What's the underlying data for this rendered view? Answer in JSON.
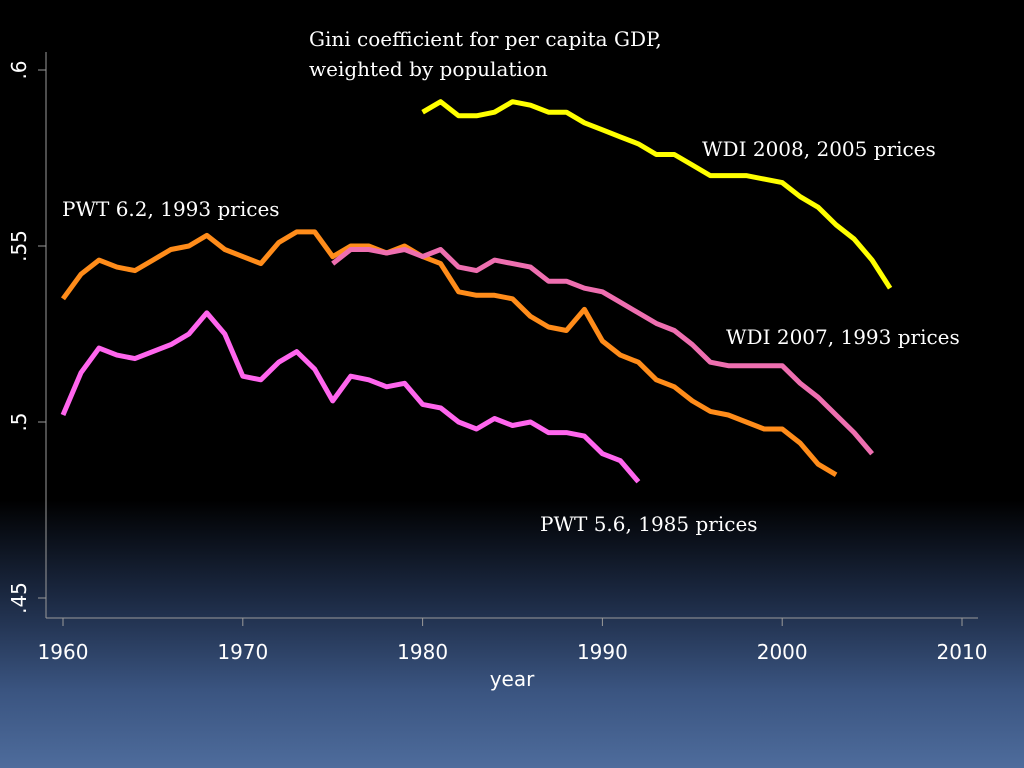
{
  "chart_data": {
    "type": "line",
    "xlabel": "year",
    "ylabel": "",
    "xlim": [
      1960,
      2010
    ],
    "ylim": [
      0.45,
      0.6
    ],
    "xticks": [
      {
        "value": 1960,
        "label": "1960"
      },
      {
        "value": 1970,
        "label": "1970"
      },
      {
        "value": 1980,
        "label": "1980"
      },
      {
        "value": 1990,
        "label": "1990"
      },
      {
        "value": 2000,
        "label": "2000"
      },
      {
        "value": 2010,
        "label": "2010"
      }
    ],
    "yticks": [
      {
        "value": 0.45,
        "label": ".45"
      },
      {
        "value": 0.5,
        "label": ".5"
      },
      {
        "value": 0.55,
        "label": ".55"
      },
      {
        "value": 0.6,
        "label": ".6"
      }
    ],
    "grid": false,
    "title_lines": [
      "Gini coefficient for per capita GDP,",
      "weighted by population"
    ],
    "series": [
      {
        "name": "WDI 2008, 2005 prices",
        "color": "#ffff00",
        "x": [
          1980,
          1981,
          1982,
          1983,
          1984,
          1985,
          1986,
          1987,
          1988,
          1989,
          1990,
          1991,
          1992,
          1993,
          1994,
          1995,
          1996,
          1997,
          1998,
          1999,
          2000,
          2001,
          2002,
          2003,
          2004,
          2005,
          2006
        ],
        "y": [
          0.588,
          0.591,
          0.587,
          0.587,
          0.588,
          0.591,
          0.59,
          0.588,
          0.588,
          0.585,
          0.583,
          0.581,
          0.579,
          0.576,
          0.576,
          0.573,
          0.57,
          0.57,
          0.57,
          0.569,
          0.568,
          0.564,
          0.561,
          0.556,
          0.552,
          0.546,
          0.538
        ]
      },
      {
        "name": "PWT 6.2, 1993 prices",
        "color": "#ff8c1a",
        "x": [
          1960,
          1961,
          1962,
          1963,
          1964,
          1965,
          1966,
          1967,
          1968,
          1969,
          1970,
          1971,
          1972,
          1973,
          1974,
          1975,
          1976,
          1977,
          1978,
          1979,
          1980,
          1981,
          1982,
          1983,
          1984,
          1985,
          1986,
          1987,
          1988,
          1989,
          1990,
          1991,
          1992,
          1993,
          1994,
          1995,
          1996,
          1997,
          1998,
          1999,
          2000,
          2001,
          2002,
          2003
        ],
        "y": [
          0.535,
          0.542,
          0.546,
          0.544,
          0.543,
          0.546,
          0.549,
          0.55,
          0.553,
          0.549,
          0.547,
          0.545,
          0.551,
          0.554,
          0.554,
          0.547,
          0.55,
          0.55,
          0.548,
          0.55,
          0.547,
          0.545,
          0.537,
          0.536,
          0.536,
          0.535,
          0.53,
          0.527,
          0.526,
          0.532,
          0.523,
          0.519,
          0.517,
          0.512,
          0.51,
          0.506,
          0.503,
          0.502,
          0.5,
          0.498,
          0.498,
          0.494,
          0.488,
          0.485
        ]
      },
      {
        "name": "WDI 2007, 1993 prices",
        "color": "#ee6fb0",
        "x": [
          1975,
          1976,
          1977,
          1978,
          1979,
          1980,
          1981,
          1982,
          1983,
          1984,
          1985,
          1986,
          1987,
          1988,
          1989,
          1990,
          1991,
          1992,
          1993,
          1994,
          1995,
          1996,
          1997,
          1998,
          1999,
          2000,
          2001,
          2002,
          2003,
          2004,
          2005
        ],
        "y": [
          0.545,
          0.549,
          0.549,
          0.548,
          0.549,
          0.547,
          0.549,
          0.544,
          0.543,
          0.546,
          0.545,
          0.544,
          0.54,
          0.54,
          0.538,
          0.537,
          0.534,
          0.531,
          0.528,
          0.526,
          0.522,
          0.517,
          0.516,
          0.516,
          0.516,
          0.516,
          0.511,
          0.507,
          0.502,
          0.497,
          0.491
        ]
      },
      {
        "name": "PWT 5.6, 1985 prices",
        "color": "#ff66ee",
        "x": [
          1960,
          1961,
          1962,
          1963,
          1964,
          1965,
          1966,
          1967,
          1968,
          1969,
          1970,
          1971,
          1972,
          1973,
          1974,
          1975,
          1976,
          1977,
          1978,
          1979,
          1980,
          1981,
          1982,
          1983,
          1984,
          1985,
          1986,
          1987,
          1988,
          1989,
          1990,
          1991,
          1992
        ],
        "y": [
          0.502,
          0.514,
          0.521,
          0.519,
          0.518,
          0.52,
          0.522,
          0.525,
          0.531,
          0.525,
          0.513,
          0.512,
          0.517,
          0.52,
          0.515,
          0.506,
          0.513,
          0.512,
          0.51,
          0.511,
          0.505,
          0.504,
          0.5,
          0.498,
          0.501,
          0.499,
          0.5,
          0.497,
          0.497,
          0.496,
          0.491,
          0.489,
          0.483
        ]
      }
    ]
  }
}
